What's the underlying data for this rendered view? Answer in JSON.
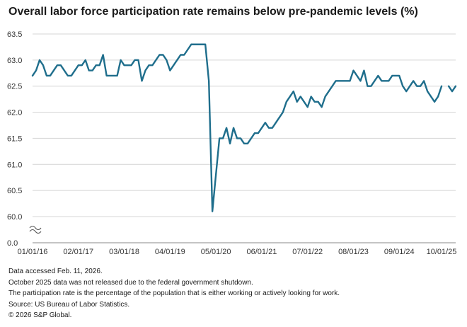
{
  "chart_data": {
    "type": "line",
    "title": "Overall labor force participation rate remains below pre-pandemic levels (%)",
    "xlabel": "",
    "ylabel": "",
    "ylim": [
      59.5,
      63.5
    ],
    "y_break": true,
    "y_ticks": [
      "63.5",
      "63.0",
      "62.5",
      "62.0",
      "61.5",
      "61.0",
      "60.5",
      "60.0",
      "0.0"
    ],
    "x_ticks": [
      "01/01/16",
      "02/01/17",
      "03/01/18",
      "04/01/19",
      "05/01/20",
      "06/01/21",
      "07/01/22",
      "08/01/23",
      "09/01/24",
      "10/01/25"
    ],
    "grid": "horizontal",
    "series": [
      {
        "name": "Labor force participation rate",
        "color": "#1f6e8c",
        "start": "2016-01",
        "values": [
          62.7,
          62.8,
          63.0,
          62.9,
          62.7,
          62.7,
          62.8,
          62.9,
          62.9,
          62.8,
          62.7,
          62.7,
          62.8,
          62.9,
          62.9,
          63.0,
          62.8,
          62.8,
          62.9,
          62.9,
          63.1,
          62.7,
          62.7,
          62.7,
          62.7,
          63.0,
          62.9,
          62.9,
          62.9,
          63.0,
          63.0,
          62.6,
          62.8,
          62.9,
          62.9,
          63.0,
          63.1,
          63.1,
          63.0,
          62.8,
          62.9,
          63.0,
          63.1,
          63.1,
          63.2,
          63.3,
          63.3,
          63.3,
          63.3,
          63.3,
          62.6,
          60.1,
          60.8,
          61.5,
          61.5,
          61.7,
          61.4,
          61.7,
          61.5,
          61.5,
          61.4,
          61.4,
          61.5,
          61.6,
          61.6,
          61.7,
          61.8,
          61.7,
          61.7,
          61.8,
          61.9,
          62.0,
          62.2,
          62.3,
          62.4,
          62.2,
          62.3,
          62.2,
          62.1,
          62.3,
          62.2,
          62.2,
          62.1,
          62.3,
          62.4,
          62.5,
          62.6,
          62.6,
          62.6,
          62.6,
          62.6,
          62.8,
          62.7,
          62.6,
          62.8,
          62.5,
          62.5,
          62.6,
          62.7,
          62.6,
          62.6,
          62.6,
          62.7,
          62.7,
          62.7,
          62.5,
          62.4,
          62.5,
          62.6,
          62.5,
          62.5,
          62.6,
          62.4,
          62.3,
          62.2,
          62.3,
          62.5,
          null,
          62.5,
          62.4,
          62.5
        ]
      }
    ]
  },
  "notes": [
    "Data accessed Feb. 11, 2026.",
    "October 2025 data was not released due to the federal government shutdown.",
    "The participation rate is the percentage of the population that is either working or actively looking for work.",
    "Source: US Bureau of Labor Statistics.",
    "© 2026 S&P Global."
  ]
}
